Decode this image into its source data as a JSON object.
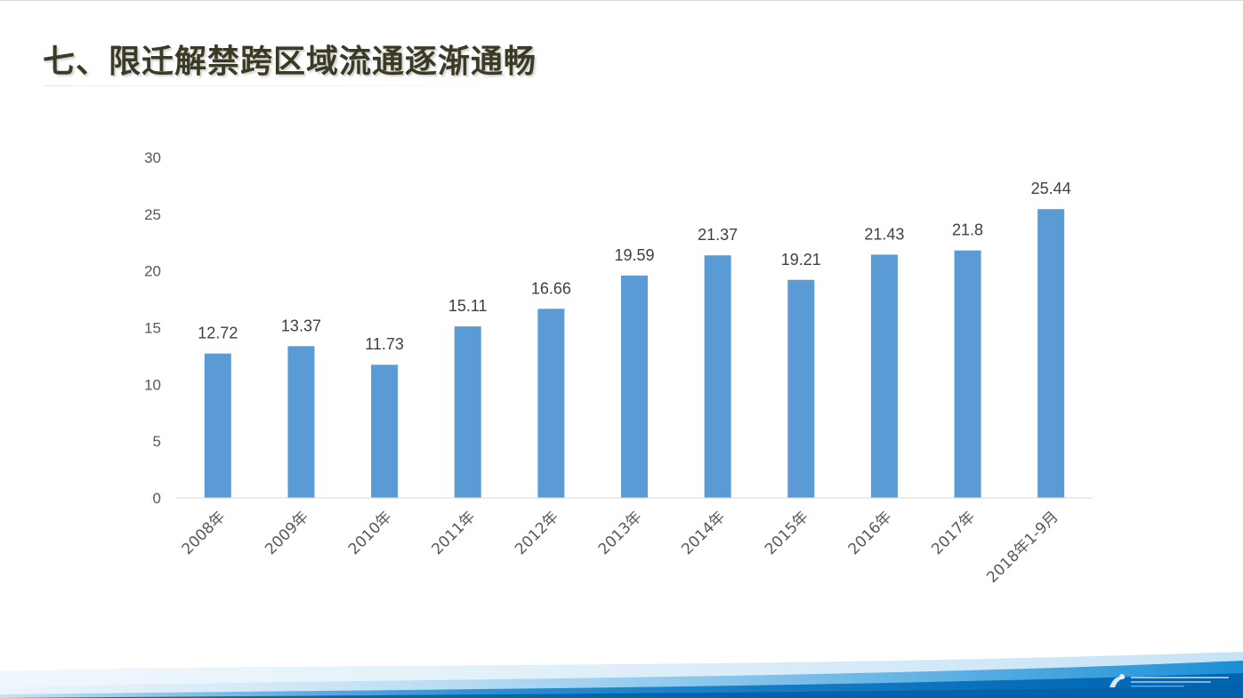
{
  "title": "七、限迁解禁跨区域流通逐渐通畅",
  "colors": {
    "bar": "#5b9bd5",
    "axis_text": "#595959",
    "label_text": "#404040",
    "title": "#3b3a24"
  },
  "chart_data": {
    "type": "bar",
    "categories": [
      "2008年",
      "2009年",
      "2010年",
      "2011年",
      "2012年",
      "2013年",
      "2014年",
      "2015年",
      "2016年",
      "2017年",
      "2018年1-9月"
    ],
    "values": [
      12.72,
      13.37,
      11.73,
      15.11,
      16.66,
      19.59,
      21.37,
      19.21,
      21.43,
      21.8,
      25.44
    ],
    "data_labels": [
      "12.72",
      "13.37",
      "11.73",
      "15.11",
      "16.66",
      "19.59",
      "21.37",
      "19.21",
      "21.43",
      "21.8",
      "25.44"
    ],
    "ylim": [
      0,
      30
    ],
    "yticks": [
      0,
      5,
      10,
      15,
      20,
      25,
      30
    ],
    "grid": false,
    "legend": "none"
  }
}
